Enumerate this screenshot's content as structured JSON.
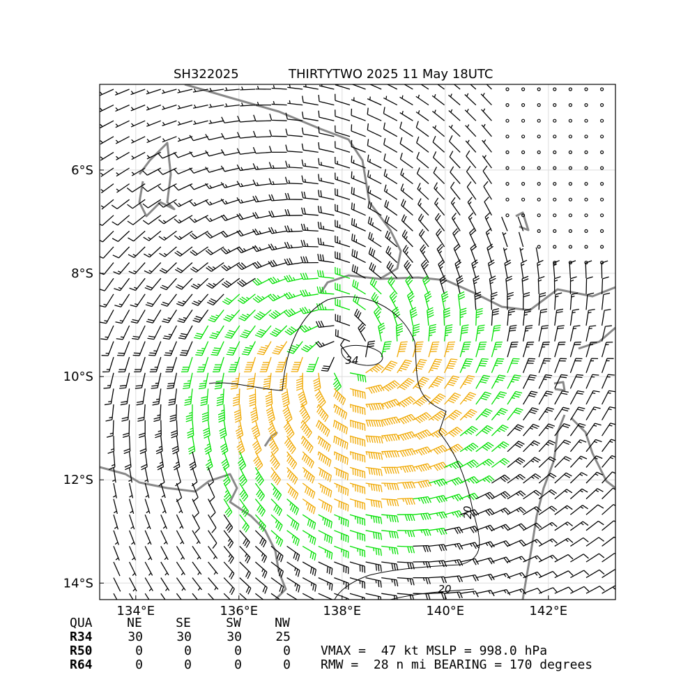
{
  "header": {
    "storm_id": "SH322025",
    "title": "THIRTYTWO 2025 11 May 18UTC"
  },
  "map": {
    "xlim": [
      133.3,
      143.3
    ],
    "ylim": [
      -14.32,
      -4.34
    ],
    "xticks": [
      {
        "value": 134,
        "label": "134°E"
      },
      {
        "value": 136,
        "label": "136°E"
      },
      {
        "value": 138,
        "label": "138°E"
      },
      {
        "value": 140,
        "label": "140°E"
      },
      {
        "value": 142,
        "label": "142°E"
      }
    ],
    "yticks": [
      {
        "value": -6,
        "label": "6°S"
      },
      {
        "value": -8,
        "label": "8°S"
      },
      {
        "value": -10,
        "label": "10°S"
      },
      {
        "value": -12,
        "label": "12°S"
      },
      {
        "value": -14,
        "label": "14°S"
      }
    ],
    "contour_labels": [
      "34",
      "20",
      "20"
    ]
  },
  "table": {
    "header": [
      "QUA",
      "NE",
      "SE",
      "SW",
      "NW"
    ],
    "rows": [
      [
        "R34",
        "30",
        "30",
        "30",
        "25"
      ],
      [
        "R50",
        "0",
        "0",
        "0",
        "0"
      ],
      [
        "R64",
        "0",
        "0",
        "0",
        "0"
      ]
    ]
  },
  "stats": [
    "VMAX =  47 kt MSLP = 998.0 hPa",
    "RMW =  28 n mi BEARING = 170 degrees"
  ]
}
